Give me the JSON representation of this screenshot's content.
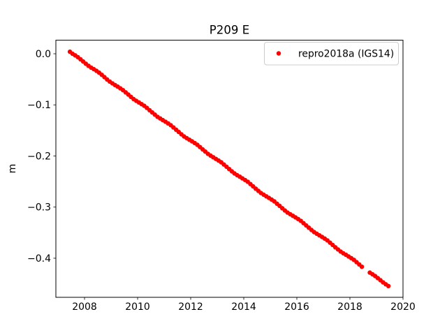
{
  "chart": {
    "title": "P209 E",
    "ylabel": "m",
    "legend": {
      "entries": [
        {
          "label": "repro2018a (IGS14)",
          "marker_icon": "dot-icon",
          "marker_color": "#ff0000"
        }
      ]
    }
  },
  "colors": {
    "marker": "#ff0000",
    "text": "#000000",
    "spine": "#000000",
    "legend_edge": "#cccccc",
    "background": "#ffffff"
  },
  "chart_data": {
    "type": "scatter",
    "title": "P209 E",
    "xlabel": "",
    "ylabel": "m",
    "xlim": [
      2006.92,
      2020.0
    ],
    "ylim": [
      -0.4765,
      0.0265
    ],
    "xticks": [
      2008,
      2010,
      2012,
      2014,
      2016,
      2018,
      2020
    ],
    "yticks": [
      0.0,
      -0.1,
      -0.2,
      -0.3,
      -0.4
    ],
    "ytick_labels": [
      "0.0",
      "−0.1",
      "−0.2",
      "−0.3",
      "−0.4"
    ],
    "grid": false,
    "legend_position": "upper right",
    "marker_radius_px": 3.2,
    "trend_m_per_yr": -0.0382,
    "data_gap_years": [
      2018.55,
      2018.75
    ],
    "series": [
      {
        "name": "repro2018a (IGS14)",
        "color": "#ff0000",
        "points": [
          [
            2007.45,
            0.004
          ],
          [
            2007.55,
            -0.0001
          ],
          [
            2007.65,
            -0.0031
          ],
          [
            2007.75,
            -0.0067
          ],
          [
            2007.85,
            -0.0109
          ],
          [
            2007.95,
            -0.0151
          ],
          [
            2008.05,
            -0.0195
          ],
          [
            2008.15,
            -0.0236
          ],
          [
            2008.25,
            -0.0271
          ],
          [
            2008.35,
            -0.0302
          ],
          [
            2008.45,
            -0.0335
          ],
          [
            2008.55,
            -0.037
          ],
          [
            2008.65,
            -0.0412
          ],
          [
            2008.75,
            -0.0457
          ],
          [
            2008.85,
            -0.0502
          ],
          [
            2008.95,
            -0.0545
          ],
          [
            2009.05,
            -0.0579
          ],
          [
            2009.15,
            -0.0611
          ],
          [
            2009.25,
            -0.0643
          ],
          [
            2009.35,
            -0.0677
          ],
          [
            2009.45,
            -0.0712
          ],
          [
            2009.55,
            -0.0755
          ],
          [
            2009.65,
            -0.0799
          ],
          [
            2009.75,
            -0.0844
          ],
          [
            2009.85,
            -0.0887
          ],
          [
            2009.95,
            -0.0921
          ],
          [
            2010.05,
            -0.0953
          ],
          [
            2010.15,
            -0.0985
          ],
          [
            2010.25,
            -0.1019
          ],
          [
            2010.35,
            -0.106
          ],
          [
            2010.45,
            -0.1104
          ],
          [
            2010.55,
            -0.1148
          ],
          [
            2010.65,
            -0.1191
          ],
          [
            2010.75,
            -0.1234
          ],
          [
            2010.85,
            -0.1266
          ],
          [
            2010.95,
            -0.1298
          ],
          [
            2011.05,
            -0.133
          ],
          [
            2011.15,
            -0.1363
          ],
          [
            2011.25,
            -0.1398
          ],
          [
            2011.35,
            -0.1442
          ],
          [
            2011.45,
            -0.1486
          ],
          [
            2011.55,
            -0.1531
          ],
          [
            2011.65,
            -0.1575
          ],
          [
            2011.75,
            -0.1618
          ],
          [
            2011.85,
            -0.165
          ],
          [
            2011.95,
            -0.1682
          ],
          [
            2012.05,
            -0.1713
          ],
          [
            2012.15,
            -0.1746
          ],
          [
            2012.25,
            -0.1781
          ],
          [
            2012.35,
            -0.1825
          ],
          [
            2012.45,
            -0.187
          ],
          [
            2012.55,
            -0.1914
          ],
          [
            2012.65,
            -0.1958
          ],
          [
            2012.75,
            -0.1993
          ],
          [
            2012.85,
            -0.2025
          ],
          [
            2012.95,
            -0.2057
          ],
          [
            2013.05,
            -0.2089
          ],
          [
            2013.15,
            -0.2123
          ],
          [
            2013.25,
            -0.2167
          ],
          [
            2013.35,
            -0.2211
          ],
          [
            2013.45,
            -0.2256
          ],
          [
            2013.55,
            -0.23
          ],
          [
            2013.65,
            -0.2342
          ],
          [
            2013.75,
            -0.2375
          ],
          [
            2013.85,
            -0.2406
          ],
          [
            2013.95,
            -0.2438
          ],
          [
            2014.05,
            -0.247
          ],
          [
            2014.15,
            -0.2504
          ],
          [
            2014.25,
            -0.2549
          ],
          [
            2014.35,
            -0.2594
          ],
          [
            2014.45,
            -0.2639
          ],
          [
            2014.55,
            -0.2683
          ],
          [
            2014.65,
            -0.2725
          ],
          [
            2014.75,
            -0.2758
          ],
          [
            2014.85,
            -0.2789
          ],
          [
            2014.95,
            -0.2821
          ],
          [
            2015.05,
            -0.2853
          ],
          [
            2015.15,
            -0.2887
          ],
          [
            2015.25,
            -0.2932
          ],
          [
            2015.35,
            -0.2977
          ],
          [
            2015.45,
            -0.3022
          ],
          [
            2015.55,
            -0.3066
          ],
          [
            2015.65,
            -0.3107
          ],
          [
            2015.75,
            -0.3139
          ],
          [
            2015.85,
            -0.317
          ],
          [
            2015.95,
            -0.3201
          ],
          [
            2016.05,
            -0.3233
          ],
          [
            2016.15,
            -0.3268
          ],
          [
            2016.25,
            -0.3313
          ],
          [
            2016.35,
            -0.3358
          ],
          [
            2016.45,
            -0.3403
          ],
          [
            2016.55,
            -0.3447
          ],
          [
            2016.65,
            -0.3488
          ],
          [
            2016.75,
            -0.3521
          ],
          [
            2016.85,
            -0.3552
          ],
          [
            2016.95,
            -0.3584
          ],
          [
            2017.05,
            -0.3616
          ],
          [
            2017.15,
            -0.3651
          ],
          [
            2017.25,
            -0.3696
          ],
          [
            2017.35,
            -0.3741
          ],
          [
            2017.45,
            -0.3786
          ],
          [
            2017.55,
            -0.3829
          ],
          [
            2017.65,
            -0.387
          ],
          [
            2017.75,
            -0.3903
          ],
          [
            2017.85,
            -0.3934
          ],
          [
            2017.95,
            -0.3966
          ],
          [
            2018.05,
            -0.3998
          ],
          [
            2018.15,
            -0.4032
          ],
          [
            2018.25,
            -0.4077
          ],
          [
            2018.35,
            -0.4122
          ],
          [
            2018.45,
            -0.4167
          ],
          [
            2018.75,
            -0.4282
          ],
          [
            2018.85,
            -0.4315
          ],
          [
            2018.95,
            -0.4349
          ],
          [
            2019.05,
            -0.4389
          ],
          [
            2019.15,
            -0.4431
          ],
          [
            2019.25,
            -0.4473
          ],
          [
            2019.35,
            -0.4509
          ],
          [
            2019.45,
            -0.4544
          ]
        ]
      }
    ]
  }
}
